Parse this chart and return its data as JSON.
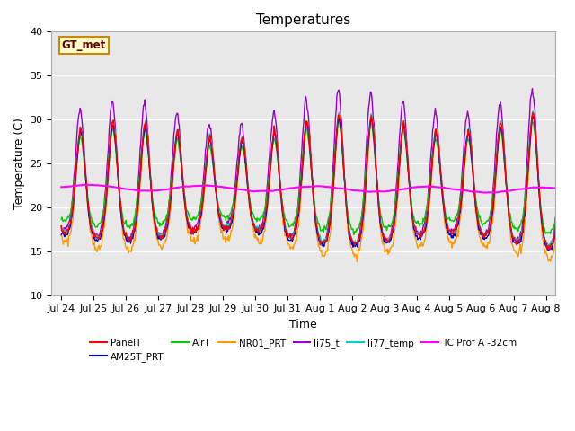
{
  "title": "Temperatures",
  "xlabel": "Time",
  "ylabel": "Temperature (C)",
  "ylim": [
    10,
    40
  ],
  "series": {
    "PanelT": {
      "color": "#ff0000",
      "lw": 1.0
    },
    "AM25T_PRT": {
      "color": "#0000cc",
      "lw": 1.0
    },
    "AirT": {
      "color": "#00cc00",
      "lw": 1.0
    },
    "NR01_PRT": {
      "color": "#ff9900",
      "lw": 1.0
    },
    "li75_t": {
      "color": "#9900cc",
      "lw": 1.0
    },
    "li77_temp": {
      "color": "#00cccc",
      "lw": 1.0
    },
    "TC Prof A -32cm": {
      "color": "#ff00ff",
      "lw": 1.5
    }
  },
  "tick_labels": [
    "Jul 24",
    "Jul 25",
    "Jul 26",
    "Jul 27",
    "Jul 28",
    "Jul 29",
    "Jul 30",
    "Jul 31",
    "Aug 1",
    "Aug 2",
    "Aug 3",
    "Aug 4",
    "Aug 5",
    "Aug 6",
    "Aug 7",
    "Aug 8"
  ],
  "tick_positions": [
    0,
    1,
    2,
    3,
    4,
    5,
    6,
    7,
    8,
    9,
    10,
    11,
    12,
    13,
    14,
    15
  ],
  "annotation_text": "GT_met",
  "bg_color": "#e8e8e8",
  "fig_color": "#ffffff",
  "yticks": [
    10,
    15,
    20,
    25,
    30,
    35,
    40
  ]
}
